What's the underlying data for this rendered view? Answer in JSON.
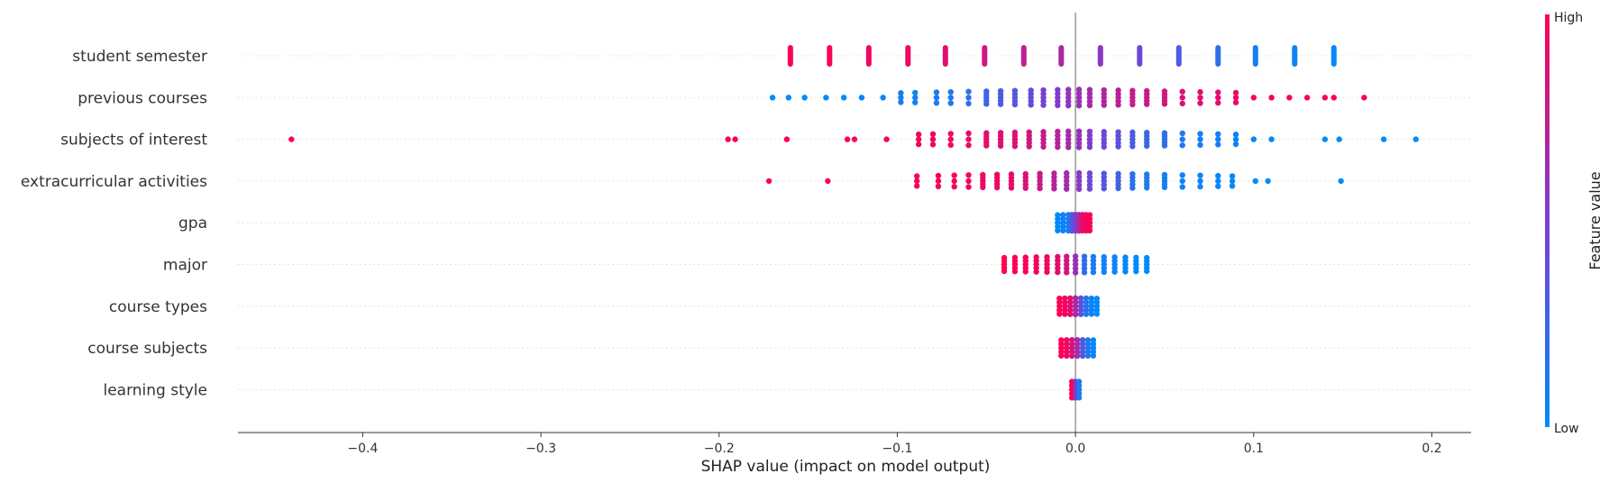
{
  "chart_data": {
    "type": "scatter",
    "subtype": "shap-beeswarm",
    "title": "",
    "xlabel": "SHAP value (impact on model output)",
    "ylabel": "",
    "xlim": [
      -0.47,
      0.222
    ],
    "xticks": [
      -0.4,
      -0.3,
      -0.2,
      -0.1,
      0.0,
      0.1,
      0.2
    ],
    "xtick_labels": [
      "−0.4",
      "−0.3",
      "−0.2",
      "−0.1",
      "0.0",
      "0.1",
      "0.2"
    ],
    "grid": false,
    "zero_line": true,
    "colorbar": {
      "title": "Feature value",
      "high_label": "High",
      "low_label": "Low",
      "low_color": "#008bfb",
      "mid_color": "#7b3fd2",
      "high_color": "#ff0052"
    },
    "features": [
      {
        "name": "student semester",
        "points": [
          {
            "x": -0.16,
            "v": 1.0
          },
          {
            "x": -0.138,
            "v": 0.98
          },
          {
            "x": -0.116,
            "v": 0.95
          },
          {
            "x": -0.094,
            "v": 0.93
          },
          {
            "x": -0.073,
            "v": 0.88
          },
          {
            "x": -0.051,
            "v": 0.82
          },
          {
            "x": -0.029,
            "v": 0.75
          },
          {
            "x": -0.008,
            "v": 0.68
          },
          {
            "x": 0.014,
            "v": 0.55
          },
          {
            "x": 0.036,
            "v": 0.45
          },
          {
            "x": 0.058,
            "v": 0.32
          },
          {
            "x": 0.08,
            "v": 0.18
          },
          {
            "x": 0.101,
            "v": 0.08
          },
          {
            "x": 0.123,
            "v": 0.05
          },
          {
            "x": 0.145,
            "v": 0.02
          }
        ]
      },
      {
        "name": "previous courses",
        "points": [
          {
            "x": -0.17,
            "v": 0.0
          },
          {
            "x": -0.161,
            "v": 0.02
          },
          {
            "x": -0.152,
            "v": 0.0
          },
          {
            "x": -0.14,
            "v": 0.04
          },
          {
            "x": -0.13,
            "v": 0.0
          },
          {
            "x": -0.12,
            "v": 0.03
          },
          {
            "x": -0.108,
            "v": 0.05
          },
          {
            "x": -0.098,
            "v": 0.08
          },
          {
            "x": -0.09,
            "v": 0.06
          },
          {
            "x": -0.078,
            "v": 0.1
          },
          {
            "x": -0.07,
            "v": 0.12
          },
          {
            "x": -0.06,
            "v": 0.18
          },
          {
            "x": -0.05,
            "v": 0.25
          },
          {
            "x": -0.042,
            "v": 0.3
          },
          {
            "x": -0.034,
            "v": 0.35
          },
          {
            "x": -0.025,
            "v": 0.42
          },
          {
            "x": -0.018,
            "v": 0.48
          },
          {
            "x": -0.01,
            "v": 0.52
          },
          {
            "x": -0.004,
            "v": 0.58
          },
          {
            "x": 0.002,
            "v": 0.62
          },
          {
            "x": 0.008,
            "v": 0.66
          },
          {
            "x": 0.016,
            "v": 0.7
          },
          {
            "x": 0.024,
            "v": 0.74
          },
          {
            "x": 0.032,
            "v": 0.78
          },
          {
            "x": 0.04,
            "v": 0.8
          },
          {
            "x": 0.05,
            "v": 0.82
          },
          {
            "x": 0.06,
            "v": 0.86
          },
          {
            "x": 0.07,
            "v": 0.88
          },
          {
            "x": 0.08,
            "v": 0.9
          },
          {
            "x": 0.09,
            "v": 0.92
          },
          {
            "x": 0.1,
            "v": 0.94
          },
          {
            "x": 0.11,
            "v": 0.96
          },
          {
            "x": 0.12,
            "v": 0.97
          },
          {
            "x": 0.13,
            "v": 0.98
          },
          {
            "x": 0.14,
            "v": 1.0
          },
          {
            "x": 0.145,
            "v": 1.0
          },
          {
            "x": 0.162,
            "v": 1.0
          }
        ]
      },
      {
        "name": "subjects of interest",
        "points": [
          {
            "x": -0.44,
            "v": 1.0
          },
          {
            "x": -0.195,
            "v": 1.0
          },
          {
            "x": -0.191,
            "v": 1.0
          },
          {
            "x": -0.162,
            "v": 1.0
          },
          {
            "x": -0.128,
            "v": 0.98
          },
          {
            "x": -0.124,
            "v": 1.0
          },
          {
            "x": -0.106,
            "v": 0.97
          },
          {
            "x": -0.088,
            "v": 0.96
          },
          {
            "x": -0.08,
            "v": 0.95
          },
          {
            "x": -0.07,
            "v": 0.94
          },
          {
            "x": -0.06,
            "v": 0.92
          },
          {
            "x": -0.05,
            "v": 0.9
          },
          {
            "x": -0.042,
            "v": 0.88
          },
          {
            "x": -0.034,
            "v": 0.86
          },
          {
            "x": -0.026,
            "v": 0.82
          },
          {
            "x": -0.018,
            "v": 0.78
          },
          {
            "x": -0.01,
            "v": 0.72
          },
          {
            "x": -0.004,
            "v": 0.66
          },
          {
            "x": 0.002,
            "v": 0.6
          },
          {
            "x": 0.008,
            "v": 0.52
          },
          {
            "x": 0.016,
            "v": 0.45
          },
          {
            "x": 0.024,
            "v": 0.38
          },
          {
            "x": 0.032,
            "v": 0.3
          },
          {
            "x": 0.04,
            "v": 0.24
          },
          {
            "x": 0.05,
            "v": 0.18
          },
          {
            "x": 0.06,
            "v": 0.12
          },
          {
            "x": 0.07,
            "v": 0.08
          },
          {
            "x": 0.08,
            "v": 0.06
          },
          {
            "x": 0.09,
            "v": 0.04
          },
          {
            "x": 0.1,
            "v": 0.03
          },
          {
            "x": 0.11,
            "v": 0.02
          },
          {
            "x": 0.14,
            "v": 0.0
          },
          {
            "x": 0.148,
            "v": 0.0
          },
          {
            "x": 0.173,
            "v": 0.0
          },
          {
            "x": 0.191,
            "v": 0.0
          }
        ]
      },
      {
        "name": "extracurricular activities",
        "points": [
          {
            "x": -0.172,
            "v": 1.0
          },
          {
            "x": -0.139,
            "v": 1.0
          },
          {
            "x": -0.089,
            "v": 0.98
          },
          {
            "x": -0.077,
            "v": 0.97
          },
          {
            "x": -0.068,
            "v": 0.96
          },
          {
            "x": -0.06,
            "v": 0.95
          },
          {
            "x": -0.052,
            "v": 0.93
          },
          {
            "x": -0.044,
            "v": 0.92
          },
          {
            "x": -0.036,
            "v": 0.9
          },
          {
            "x": -0.028,
            "v": 0.86
          },
          {
            "x": -0.02,
            "v": 0.8
          },
          {
            "x": -0.012,
            "v": 0.72
          },
          {
            "x": -0.005,
            "v": 0.64
          },
          {
            "x": 0.002,
            "v": 0.55
          },
          {
            "x": 0.008,
            "v": 0.45
          },
          {
            "x": 0.016,
            "v": 0.35
          },
          {
            "x": 0.024,
            "v": 0.26
          },
          {
            "x": 0.032,
            "v": 0.18
          },
          {
            "x": 0.04,
            "v": 0.12
          },
          {
            "x": 0.05,
            "v": 0.08
          },
          {
            "x": 0.06,
            "v": 0.05
          },
          {
            "x": 0.07,
            "v": 0.04
          },
          {
            "x": 0.08,
            "v": 0.03
          },
          {
            "x": 0.088,
            "v": 0.02
          },
          {
            "x": 0.101,
            "v": 0.0
          },
          {
            "x": 0.108,
            "v": 0.0
          },
          {
            "x": 0.149,
            "v": 0.0
          }
        ]
      },
      {
        "name": "gpa",
        "points": [
          {
            "x": -0.01,
            "v": 0.0
          },
          {
            "x": -0.007,
            "v": 0.05
          },
          {
            "x": -0.004,
            "v": 0.1
          },
          {
            "x": -0.002,
            "v": 0.3
          },
          {
            "x": 0.0,
            "v": 0.5
          },
          {
            "x": 0.002,
            "v": 0.7
          },
          {
            "x": 0.004,
            "v": 0.9
          },
          {
            "x": 0.006,
            "v": 0.95
          },
          {
            "x": 0.008,
            "v": 1.0
          }
        ]
      },
      {
        "name": "major",
        "points": [
          {
            "x": -0.04,
            "v": 1.0
          },
          {
            "x": -0.034,
            "v": 1.0
          },
          {
            "x": -0.028,
            "v": 0.98
          },
          {
            "x": -0.022,
            "v": 0.96
          },
          {
            "x": -0.016,
            "v": 0.94
          },
          {
            "x": -0.01,
            "v": 0.9
          },
          {
            "x": -0.005,
            "v": 0.82
          },
          {
            "x": 0.0,
            "v": 0.6
          },
          {
            "x": 0.005,
            "v": 0.2
          },
          {
            "x": 0.01,
            "v": 0.1
          },
          {
            "x": 0.016,
            "v": 0.06
          },
          {
            "x": 0.022,
            "v": 0.04
          },
          {
            "x": 0.028,
            "v": 0.02
          },
          {
            "x": 0.034,
            "v": 0.0
          },
          {
            "x": 0.04,
            "v": 0.0
          }
        ]
      },
      {
        "name": "course types",
        "points": [
          {
            "x": -0.009,
            "v": 1.0
          },
          {
            "x": -0.006,
            "v": 0.96
          },
          {
            "x": -0.003,
            "v": 0.88
          },
          {
            "x": 0.0,
            "v": 0.7
          },
          {
            "x": 0.003,
            "v": 0.4
          },
          {
            "x": 0.006,
            "v": 0.15
          },
          {
            "x": 0.009,
            "v": 0.05
          },
          {
            "x": 0.012,
            "v": 0.0
          }
        ]
      },
      {
        "name": "course subjects",
        "points": [
          {
            "x": -0.008,
            "v": 1.0
          },
          {
            "x": -0.005,
            "v": 0.95
          },
          {
            "x": -0.002,
            "v": 0.85
          },
          {
            "x": 0.001,
            "v": 0.65
          },
          {
            "x": 0.004,
            "v": 0.35
          },
          {
            "x": 0.007,
            "v": 0.12
          },
          {
            "x": 0.01,
            "v": 0.02
          }
        ]
      },
      {
        "name": "learning style",
        "points": [
          {
            "x": -0.002,
            "v": 1.0
          },
          {
            "x": 0.0,
            "v": 0.6
          },
          {
            "x": 0.002,
            "v": 0.1
          }
        ]
      }
    ]
  }
}
